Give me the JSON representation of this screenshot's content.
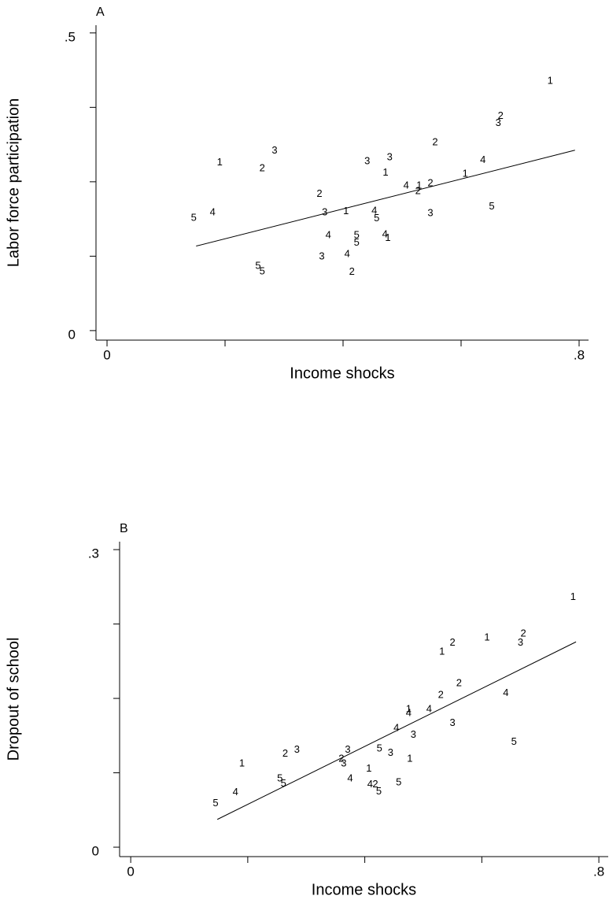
{
  "chart_data": [
    {
      "type": "scatter",
      "panel_label": "A",
      "xlabel": "Income shocks",
      "ylabel": "Labor force participation",
      "color": "#000000",
      "xlim": [
        -0.0187,
        0.816
      ],
      "ylim": [
        -0.016,
        0.513
      ],
      "xticks": [
        0,
        {
          "value": 0.8,
          "label": ".8"
        }
      ],
      "minor_xticks": [
        0.2,
        0.4,
        0.6
      ],
      "yticks": [
        0,
        {
          "value": 0.5,
          "label": ".5"
        }
      ],
      "minor_yticks": [
        0.125,
        0.25,
        0.375
      ],
      "series": [
        {
          "color": "#000000",
          "x": [
            0.751,
            0.667,
            0.663,
            0.284,
            0.191,
            0.263,
            0.441,
            0.479,
            0.556,
            0.637,
            0.472,
            0.607,
            0.507,
            0.529,
            0.548,
            0.527,
            0.36,
            0.369,
            0.405,
            0.453,
            0.457,
            0.548,
            0.652,
            0.147,
            0.179,
            0.375,
            0.423,
            0.423,
            0.471,
            0.476,
            0.364,
            0.407,
            0.256,
            0.263,
            0.415
          ],
          "values": [
            0.419,
            0.36,
            0.348,
            0.302,
            0.282,
            0.272,
            0.284,
            0.291,
            0.316,
            0.286,
            0.265,
            0.263,
            0.243,
            0.243,
            0.247,
            0.234,
            0.229,
            0.198,
            0.2,
            0.201,
            0.188,
            0.197,
            0.208,
            0.189,
            0.198,
            0.16,
            0.16,
            0.147,
            0.161,
            0.155,
            0.124,
            0.128,
            0.108,
            0.099,
            0.098
          ],
          "marker_labels": [
            1,
            2,
            3,
            3,
            1,
            2,
            3,
            3,
            2,
            4,
            1,
            1,
            4,
            1,
            2,
            2,
            2,
            3,
            1,
            4,
            5,
            3,
            5,
            5,
            4,
            4,
            5,
            5,
            4,
            1,
            3,
            4,
            5,
            5,
            2
          ]
        }
      ],
      "fit_line": {
        "x": [
          0.151,
          0.793
        ],
        "values": [
          0.142,
          0.303
        ]
      }
    },
    {
      "type": "scatter",
      "panel_label": "B",
      "xlabel": "Income shocks",
      "ylabel": "Dropout of school",
      "color": "#000000",
      "xlim": [
        -0.019,
        0.816
      ],
      "ylim": [
        -0.0095,
        0.308
      ],
      "xticks": [
        0,
        {
          "value": 0.8,
          "label": ".8"
        }
      ],
      "minor_xticks": [
        0.2,
        0.4,
        0.6
      ],
      "yticks": [
        0,
        {
          "value": 0.3,
          "label": ".3"
        }
      ],
      "minor_yticks": [
        0.075,
        0.15,
        0.225
      ],
      "series": [
        {
          "color": "#000000",
          "x": [
            0.756,
            0.671,
            0.666,
            0.609,
            0.55,
            0.532,
            0.561,
            0.53,
            0.641,
            0.475,
            0.475,
            0.51,
            0.454,
            0.55,
            0.483,
            0.655,
            0.284,
            0.264,
            0.371,
            0.425,
            0.444,
            0.36,
            0.364,
            0.19,
            0.477,
            0.407,
            0.375,
            0.255,
            0.261,
            0.409,
            0.418,
            0.458,
            0.424,
            0.179,
            0.145
          ],
          "values": [
            0.252,
            0.215,
            0.206,
            0.211,
            0.206,
            0.197,
            0.165,
            0.153,
            0.155,
            0.139,
            0.135,
            0.139,
            0.12,
            0.125,
            0.113,
            0.106,
            0.098,
            0.094,
            0.098,
            0.099,
            0.095,
            0.089,
            0.084,
            0.084,
            0.089,
            0.079,
            0.069,
            0.069,
            0.064,
            0.063,
            0.063,
            0.065,
            0.056,
            0.055,
            0.044
          ],
          "marker_labels": [
            1,
            2,
            3,
            1,
            2,
            1,
            2,
            2,
            4,
            1,
            4,
            4,
            4,
            3,
            3,
            5,
            3,
            2,
            3,
            5,
            3,
            2,
            3,
            1,
            1,
            1,
            4,
            5,
            5,
            4,
            2,
            5,
            5,
            4,
            5
          ]
        }
      ],
      "fit_line": {
        "x": [
          0.148,
          0.761
        ],
        "values": [
          0.028,
          0.207
        ]
      }
    }
  ]
}
